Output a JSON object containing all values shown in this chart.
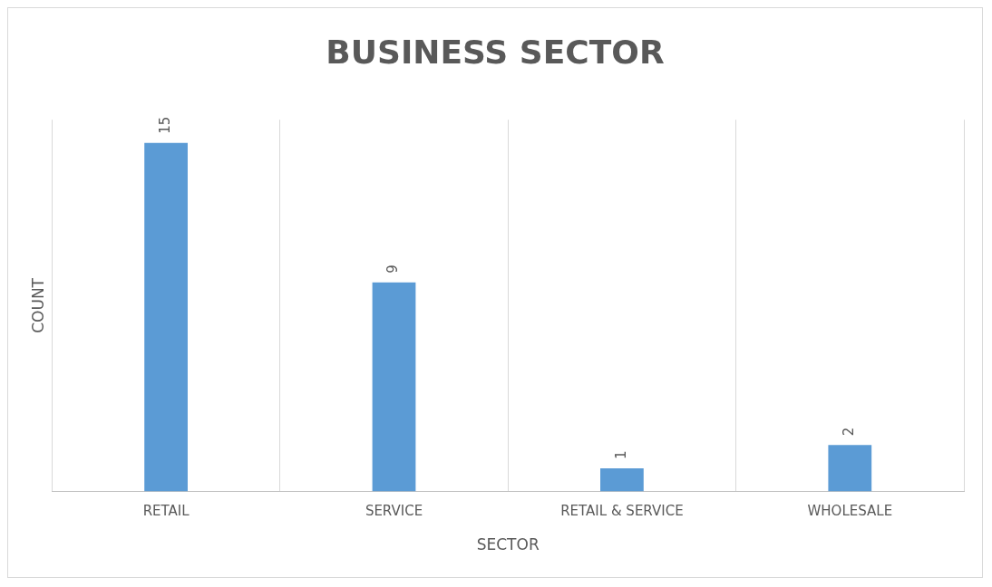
{
  "chart_data": {
    "type": "bar",
    "title": "BUSINESS SECTOR",
    "xlabel": "SECTOR",
    "ylabel": "COUNT",
    "categories": [
      "RETAIL",
      "SERVICE",
      "RETAIL & SERVICE",
      "WHOLESALE"
    ],
    "values": [
      15,
      9,
      1,
      2
    ],
    "color": "#5b9bd5",
    "data_labels": true,
    "grid": "x",
    "legend": false
  }
}
